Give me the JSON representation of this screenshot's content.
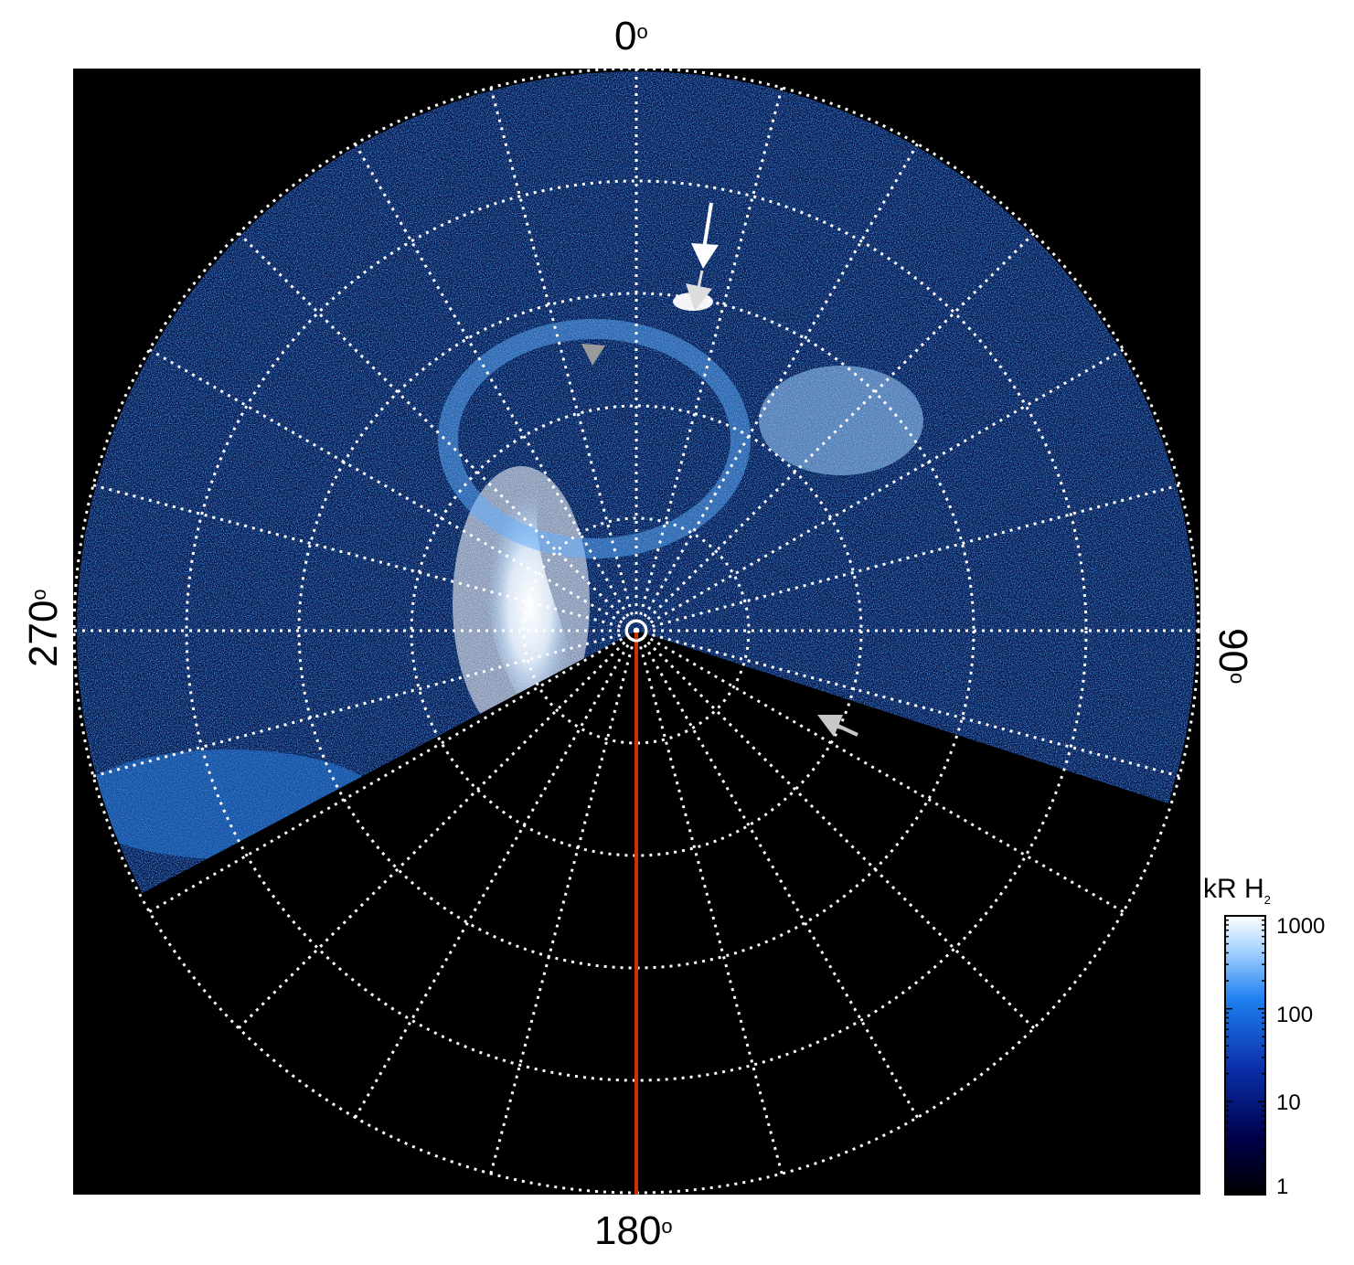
{
  "figure": {
    "angle_labels": {
      "top": "0",
      "right": "90",
      "bottom": "180",
      "left": "270"
    },
    "degree_symbol": "o",
    "colorbar": {
      "title_main": "kR H",
      "title_sub": "2",
      "ticks": [
        "1000",
        "100",
        "10",
        "1"
      ],
      "scale": "log",
      "range": [
        1,
        1000
      ],
      "colors": [
        "#000000",
        "#00004a",
        "#0a2ea8",
        "#1e7ff0",
        "#a8d4ff",
        "#ffffff"
      ]
    },
    "colors": {
      "background": "#000000",
      "grid": "#ffffff",
      "meridian_line": "#cc3300",
      "emission": "#2e8cff",
      "arrow_white": "#ffffff",
      "arrow_gray": "#9a9a9a"
    },
    "grid": {
      "rings": 5,
      "meridians": 24,
      "style": "dotted"
    }
  }
}
